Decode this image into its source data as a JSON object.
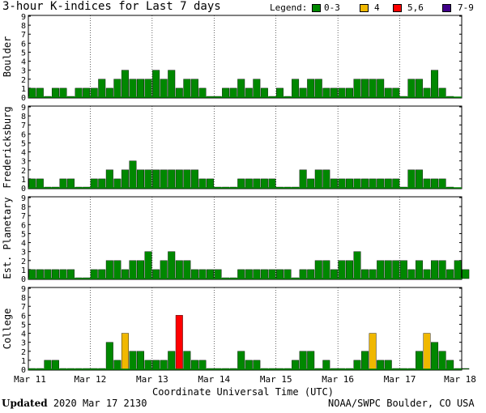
{
  "title": "3-hour K-indices for Last 7 days",
  "legend": {
    "label": "Legend:",
    "items": [
      {
        "label": "0-3",
        "color": "#008800"
      },
      {
        "label": "4",
        "color": "#f0b800"
      },
      {
        "label": "5,6",
        "color": "#ff0000"
      },
      {
        "label": "7-9",
        "color": "#400088"
      }
    ]
  },
  "footer": {
    "updated_label": "Updated",
    "updated_value": "2020 Mar 17 2130",
    "source": "NOAA/SWPC Boulder, CO USA"
  },
  "chart_data": {
    "type": "bar",
    "xlabel": "Coordinate Universal Time (UTC)",
    "x_ticks": [
      "Mar 11",
      "Mar 12",
      "Mar 13",
      "Mar 14",
      "Mar 15",
      "Mar 16",
      "Mar 17",
      "Mar 18"
    ],
    "ylim": [
      0,
      9
    ],
    "y_ticks": [
      0,
      1,
      2,
      3,
      4,
      5,
      6,
      7,
      8,
      9
    ],
    "bars_per_day": 8,
    "panels": [
      {
        "name": "Boulder",
        "values": [
          1,
          1,
          0,
          1,
          1,
          0,
          1,
          1,
          1,
          2,
          1,
          2,
          3,
          2,
          2,
          2,
          3,
          2,
          3,
          1,
          2,
          2,
          1,
          0,
          0,
          1,
          1,
          2,
          1,
          2,
          1,
          0,
          1,
          0,
          2,
          1,
          2,
          2,
          1,
          1,
          1,
          1,
          2,
          2,
          2,
          2,
          1,
          1,
          0,
          2,
          2,
          1,
          3,
          1,
          0
        ]
      },
      {
        "name": "Fredericksburg",
        "values": [
          1,
          1,
          0,
          0,
          1,
          1,
          0,
          0,
          1,
          1,
          2,
          1,
          2,
          3,
          2,
          2,
          2,
          2,
          2,
          2,
          2,
          2,
          1,
          1,
          0,
          0,
          0,
          1,
          1,
          1,
          1,
          1,
          0,
          0,
          0,
          2,
          1,
          2,
          2,
          1,
          1,
          1,
          1,
          1,
          1,
          1,
          1,
          1,
          0,
          2,
          2,
          1,
          1,
          1,
          0
        ]
      },
      {
        "name": "Est. Planetary",
        "values": [
          1,
          1,
          1,
          1,
          1,
          1,
          0,
          0,
          1,
          1,
          2,
          2,
          1,
          2,
          2,
          3,
          1,
          2,
          3,
          2,
          2,
          1,
          1,
          1,
          1,
          0,
          0,
          1,
          1,
          1,
          1,
          1,
          1,
          1,
          0,
          1,
          1,
          2,
          2,
          1,
          2,
          2,
          3,
          1,
          1,
          2,
          2,
          2,
          2,
          1,
          2,
          1,
          2,
          2,
          1,
          2,
          1
        ]
      },
      {
        "name": "College",
        "values": [
          0,
          0,
          1,
          1,
          0,
          0,
          0,
          0,
          0,
          0,
          3,
          1,
          4,
          2,
          2,
          1,
          1,
          1,
          2,
          6,
          2,
          1,
          1,
          0,
          0,
          0,
          0,
          2,
          1,
          1,
          0,
          0,
          0,
          0,
          1,
          2,
          2,
          0,
          1,
          0,
          0,
          0,
          1,
          2,
          4,
          1,
          1,
          0,
          0,
          0,
          2,
          4,
          3,
          2,
          1,
          0,
          0
        ]
      }
    ]
  }
}
